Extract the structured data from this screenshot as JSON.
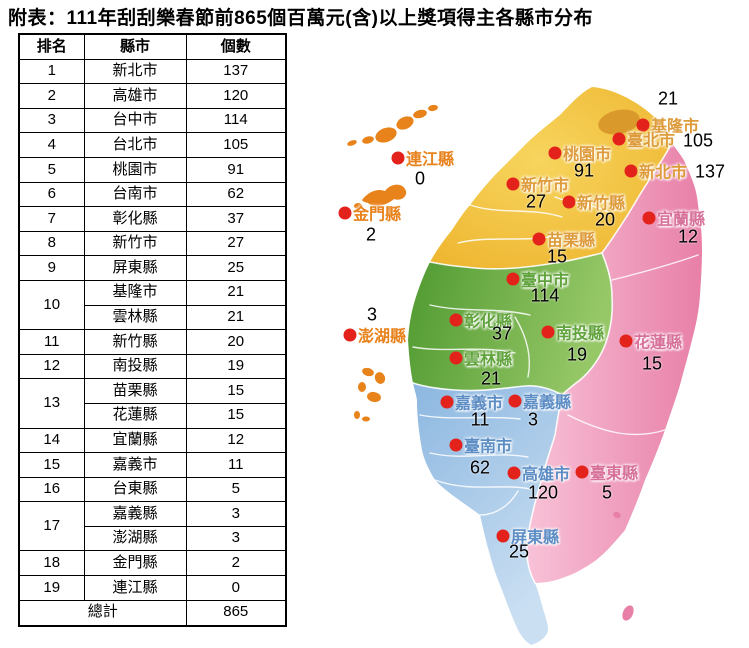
{
  "title": "附表：111年刮刮樂春節前865個百萬元(含)以上獎項得主各縣市分布",
  "table": {
    "headers": [
      "排名",
      "縣市",
      "個數"
    ],
    "rows": [
      {
        "rank": "1",
        "county": "新北市",
        "count": "137"
      },
      {
        "rank": "2",
        "county": "高雄市",
        "count": "120"
      },
      {
        "rank": "3",
        "county": "台中市",
        "count": "114"
      },
      {
        "rank": "4",
        "county": "台北市",
        "count": "105"
      },
      {
        "rank": "5",
        "county": "桃園市",
        "count": "91"
      },
      {
        "rank": "6",
        "county": "台南市",
        "count": "62"
      },
      {
        "rank": "7",
        "county": "彰化縣",
        "count": "37"
      },
      {
        "rank": "8",
        "county": "新竹市",
        "count": "27"
      },
      {
        "rank": "9",
        "county": "屏東縣",
        "count": "25"
      },
      {
        "rank": "10",
        "rankspan": 2,
        "county": "基隆市",
        "count": "21"
      },
      {
        "county": "雲林縣",
        "count": "21"
      },
      {
        "rank": "11",
        "county": "新竹縣",
        "count": "20"
      },
      {
        "rank": "12",
        "county": "南投縣",
        "count": "19"
      },
      {
        "rank": "13",
        "rankspan": 2,
        "county": "苗栗縣",
        "count": "15"
      },
      {
        "county": "花蓮縣",
        "count": "15"
      },
      {
        "rank": "14",
        "county": "宜蘭縣",
        "count": "12"
      },
      {
        "rank": "15",
        "county": "嘉義市",
        "count": "11"
      },
      {
        "rank": "16",
        "county": "台東縣",
        "count": "5"
      },
      {
        "rank": "17",
        "rankspan": 2,
        "county": "嘉義縣",
        "count": "3"
      },
      {
        "county": "澎湖縣",
        "count": "3"
      },
      {
        "rank": "18",
        "county": "金門縣",
        "count": "2"
      },
      {
        "rank": "19",
        "county": "連江縣",
        "count": "0"
      }
    ],
    "total_label": "總計",
    "total_value": "865"
  },
  "map": {
    "label_colors": {
      "north": "#de9b3b",
      "island": "#e8821c",
      "east": "#d7719a",
      "central": "#61a33c",
      "south": "#5c8dc5"
    },
    "region_colors": {
      "north_yellow": "#f0c239",
      "taipei_patch": "#d9992b",
      "central_green": "#6cab43",
      "south_blue": "#a9cbe9",
      "east_pink": "#ee94b8",
      "offshore_orange": "#e8831b",
      "dot_red": "#e3221c"
    },
    "markers": [
      {
        "name": "連江縣",
        "value": "0",
        "region": "island",
        "dot": [
          68,
          73
        ],
        "label": [
          76,
          73
        ],
        "num": [
          90,
          94
        ]
      },
      {
        "name": "金門縣",
        "value": "2",
        "region": "island",
        "dot": [
          15,
          128
        ],
        "label": [
          23,
          128
        ],
        "num": [
          41,
          150
        ]
      },
      {
        "name": "澎湖縣",
        "value": "3",
        "region": "island",
        "dot": [
          20,
          250
        ],
        "label": [
          28,
          250
        ],
        "num": [
          42,
          230
        ]
      },
      {
        "name": "基隆市",
        "value": "21",
        "region": "north",
        "dot": [
          313,
          40
        ],
        "label": [
          321,
          40
        ],
        "num": [
          338,
          14
        ]
      },
      {
        "name": "臺北市",
        "value": "105",
        "region": "north",
        "dot": [
          289,
          54
        ],
        "label": [
          297,
          54
        ],
        "num": [
          368,
          56
        ]
      },
      {
        "name": "桃園市",
        "value": "91",
        "region": "north",
        "dot": [
          225,
          68
        ],
        "label": [
          233,
          68
        ],
        "num": [
          254,
          86
        ]
      },
      {
        "name": "新北市",
        "value": "137",
        "region": "north",
        "dot": [
          301,
          86
        ],
        "label": [
          309,
          86
        ],
        "num": [
          380,
          87
        ]
      },
      {
        "name": "新竹市",
        "value": "27",
        "region": "north",
        "dot": [
          183,
          99
        ],
        "label": [
          191,
          99
        ],
        "num": [
          206,
          117
        ]
      },
      {
        "name": "新竹縣",
        "value": "20",
        "region": "north",
        "dot": [
          239,
          117
        ],
        "label": [
          247,
          117
        ],
        "num": [
          275,
          135
        ]
      },
      {
        "name": "宜蘭縣",
        "value": "12",
        "region": "east",
        "dot": [
          319,
          133
        ],
        "label": [
          327,
          133
        ],
        "num": [
          358,
          152
        ]
      },
      {
        "name": "苗栗縣",
        "value": "15",
        "region": "north",
        "dot": [
          209,
          154
        ],
        "label": [
          217,
          154
        ],
        "num": [
          227,
          172
        ]
      },
      {
        "name": "臺中市",
        "value": "114",
        "region": "central",
        "dot": [
          183,
          194
        ],
        "label": [
          191,
          194
        ],
        "num": [
          215,
          211
        ]
      },
      {
        "name": "彰化縣",
        "value": "37",
        "region": "central",
        "dot": [
          126,
          235
        ],
        "label": [
          134,
          235
        ],
        "num": [
          172,
          249
        ]
      },
      {
        "name": "南投縣",
        "value": "19",
        "region": "central",
        "dot": [
          218,
          247
        ],
        "label": [
          226,
          247
        ],
        "num": [
          247,
          270
        ]
      },
      {
        "name": "花蓮縣",
        "value": "15",
        "region": "east",
        "dot": [
          296,
          256
        ],
        "label": [
          304,
          256
        ],
        "num": [
          322,
          279
        ]
      },
      {
        "name": "雲林縣",
        "value": "21",
        "region": "central",
        "dot": [
          126,
          273
        ],
        "label": [
          134,
          273
        ],
        "num": [
          161,
          294
        ]
      },
      {
        "name": "嘉義市",
        "value": "11",
        "region": "south",
        "dot": [
          117,
          317
        ],
        "label": [
          125,
          317
        ],
        "num": [
          150,
          335
        ]
      },
      {
        "name": "嘉義縣",
        "value": "3",
        "region": "south",
        "dot": [
          185,
          316
        ],
        "label": [
          193,
          316
        ],
        "num": [
          203,
          335
        ]
      },
      {
        "name": "臺南市",
        "value": "62",
        "region": "south",
        "dot": [
          126,
          360
        ],
        "label": [
          134,
          360
        ],
        "num": [
          150,
          383
        ]
      },
      {
        "name": "高雄市",
        "value": "120",
        "region": "south",
        "dot": [
          184,
          388
        ],
        "label": [
          192,
          388
        ],
        "num": [
          213,
          408
        ]
      },
      {
        "name": "臺東縣",
        "value": "5",
        "region": "east",
        "dot": [
          252,
          387
        ],
        "label": [
          260,
          387
        ],
        "num": [
          277,
          408
        ]
      },
      {
        "name": "屏東縣",
        "value": "25",
        "region": "south",
        "dot": [
          173,
          451
        ],
        "label": [
          181,
          451
        ],
        "num": [
          189,
          467
        ]
      }
    ]
  },
  "chart_data": {
    "type": "table",
    "title": "111年刮刮樂春節前865個百萬元(含)以上獎項得主各縣市分布",
    "categories": [
      "新北市",
      "高雄市",
      "台中市",
      "台北市",
      "桃園市",
      "台南市",
      "彰化縣",
      "新竹市",
      "屏東縣",
      "基隆市",
      "雲林縣",
      "新竹縣",
      "南投縣",
      "苗栗縣",
      "花蓮縣",
      "宜蘭縣",
      "嘉義市",
      "台東縣",
      "嘉義縣",
      "澎湖縣",
      "金門縣",
      "連江縣"
    ],
    "values": [
      137,
      120,
      114,
      105,
      91,
      62,
      37,
      27,
      25,
      21,
      21,
      20,
      19,
      15,
      15,
      12,
      11,
      5,
      3,
      3,
      2,
      0
    ],
    "total": 865
  }
}
